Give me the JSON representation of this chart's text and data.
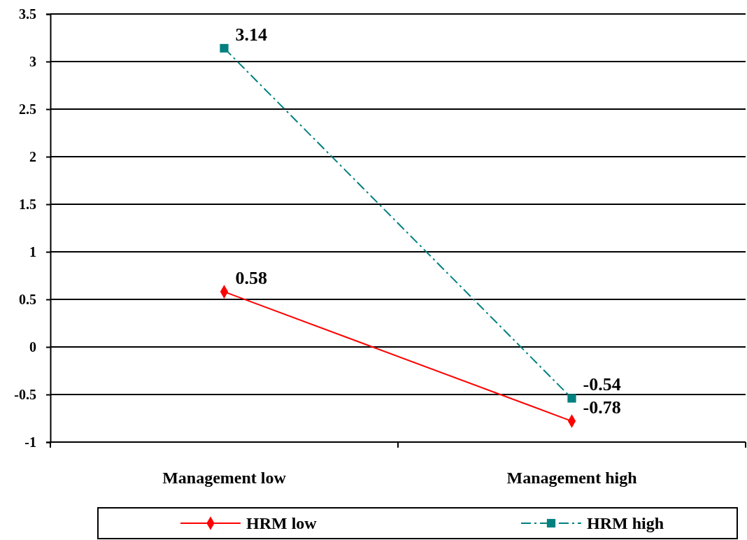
{
  "chart_data": {
    "type": "line",
    "categories": [
      "Management low",
      "Management high"
    ],
    "series": [
      {
        "name": "HRM low",
        "color": "#ff0000",
        "values": [
          0.58,
          -0.78
        ],
        "marker": "diamond",
        "line_style": "solid"
      },
      {
        "name": "HRM high",
        "color": "#008080",
        "values": [
          3.14,
          -0.54
        ],
        "marker": "square",
        "line_style": "dashed"
      }
    ],
    "ylim": [
      -1,
      3.5
    ],
    "yticks": [
      -1,
      -0.5,
      0,
      0.5,
      1,
      1.5,
      2,
      2.5,
      3,
      3.5
    ],
    "grid": "y",
    "legend": "bottom",
    "data_labels": true
  }
}
